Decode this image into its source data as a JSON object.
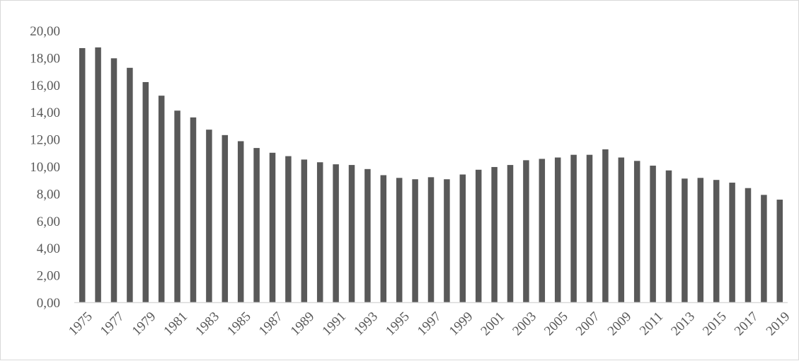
{
  "chart_data": {
    "type": "bar",
    "title": "",
    "xlabel": "",
    "ylabel": "",
    "ylim": [
      0,
      20
    ],
    "yticks": [
      "0,00",
      "2,00",
      "4,00",
      "6,00",
      "8,00",
      "10,00",
      "12,00",
      "14,00",
      "16,00",
      "18,00",
      "20,00"
    ],
    "grid": false,
    "legend": "none",
    "bar_color": "#595959",
    "axis_color": "#d9d9d9",
    "label_color": "#595959",
    "categories": [
      "1975",
      "1976",
      "1977",
      "1978",
      "1979",
      "1980",
      "1981",
      "1982",
      "1983",
      "1984",
      "1985",
      "1986",
      "1987",
      "1988",
      "1989",
      "1990",
      "1991",
      "1992",
      "1993",
      "1994",
      "1995",
      "1996",
      "1997",
      "1998",
      "1999",
      "2000",
      "2001",
      "2002",
      "2003",
      "2004",
      "2005",
      "2006",
      "2007",
      "2008",
      "2009",
      "2010",
      "2011",
      "2012",
      "2013",
      "2014",
      "2015",
      "2016",
      "2017",
      "2018",
      "2019"
    ],
    "xtick_labels": [
      "1975",
      "1977",
      "1979",
      "1981",
      "1983",
      "1985",
      "1987",
      "1989",
      "1991",
      "1993",
      "1995",
      "1997",
      "1999",
      "2001",
      "2003",
      "2005",
      "2007",
      "2009",
      "2011",
      "2013",
      "2015",
      "2017",
      "2019"
    ],
    "values": [
      18.7,
      18.75,
      17.95,
      17.25,
      16.2,
      15.2,
      14.1,
      13.6,
      12.7,
      12.3,
      11.85,
      11.35,
      11.0,
      10.75,
      10.5,
      10.3,
      10.15,
      10.1,
      9.8,
      9.35,
      9.15,
      9.05,
      9.2,
      9.05,
      9.4,
      9.75,
      9.95,
      10.1,
      10.45,
      10.55,
      10.65,
      10.85,
      10.85,
      11.25,
      10.65,
      10.4,
      10.05,
      9.7,
      9.1,
      9.15,
      9.0,
      8.8,
      8.4,
      7.9,
      7.55
    ]
  }
}
